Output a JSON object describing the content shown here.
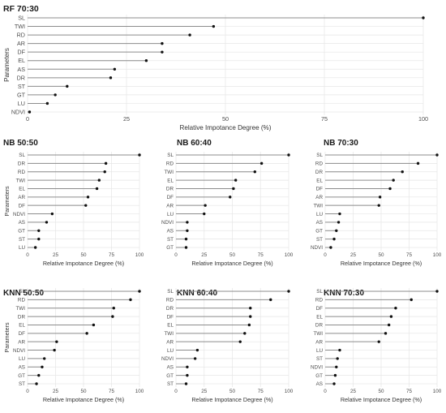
{
  "chart_data": [
    {
      "type": "lollipop",
      "title": "RF 70:30",
      "xlabel": "Relative Impotance Degree (%)",
      "ylabel": "Parameters",
      "xlim": [
        0,
        100
      ],
      "xticks": [
        "0",
        "25",
        "50",
        "75",
        "100"
      ],
      "grid": true,
      "categories": [
        "SL",
        "TWI",
        "RD",
        "AR",
        "DF",
        "EL",
        "AS",
        "DR",
        "ST",
        "GT",
        "LU",
        "NDVI"
      ],
      "values": [
        100,
        47,
        41,
        34,
        34,
        30,
        22,
        21,
        10,
        7,
        5,
        0.5
      ]
    },
    {
      "type": "lollipop",
      "title": "NB 50:50",
      "xlabel": "Relative Impotance Degree (%)",
      "ylabel": "Parameters",
      "xlim": [
        0,
        100
      ],
      "xticks": [
        "0",
        "25",
        "50",
        "75",
        "100"
      ],
      "grid": true,
      "categories": [
        "SL",
        "DR",
        "RD",
        "TWI",
        "EL",
        "AR",
        "DF",
        "NDVI",
        "AS",
        "GT",
        "ST",
        "LU"
      ],
      "values": [
        100,
        70,
        69,
        64,
        62,
        54,
        52,
        22,
        17,
        10,
        10,
        7
      ]
    },
    {
      "type": "lollipop",
      "title": "NB 60:40",
      "xlabel": "Relative Impotance Degree (%)",
      "ylabel": "",
      "xlim": [
        0,
        100
      ],
      "xticks": [
        "0",
        "25",
        "50",
        "75",
        "100"
      ],
      "grid": true,
      "categories": [
        "SL",
        "RD",
        "TWI",
        "EL",
        "DR",
        "DF",
        "AR",
        "LU",
        "NDVI",
        "AS",
        "ST",
        "GT"
      ],
      "values": [
        100,
        76,
        70,
        53,
        51,
        48,
        26,
        25,
        10,
        10,
        9,
        9
      ]
    },
    {
      "type": "lollipop",
      "title": "NB 70:30",
      "xlabel": "Relative Impotance Degree (%)",
      "ylabel": "",
      "xlim": [
        0,
        100
      ],
      "xticks": [
        "0",
        "25",
        "50",
        "75",
        "100"
      ],
      "grid": true,
      "categories": [
        "SL",
        "RD",
        "DR",
        "EL",
        "DF",
        "AR",
        "TWI",
        "LU",
        "AS",
        "GT",
        "ST",
        "NDVI"
      ],
      "values": [
        100,
        83,
        69,
        61,
        58,
        49,
        48,
        13,
        12,
        10,
        8,
        5
      ]
    },
    {
      "type": "lollipop",
      "title": "KNN 50:50",
      "xlabel": "Relative Impotance Degree (%)",
      "ylabel": "Parameters",
      "xlim": [
        0,
        100
      ],
      "xticks": [
        "0",
        "25",
        "50",
        "75",
        "100"
      ],
      "grid": true,
      "categories": [
        "SL",
        "RD",
        "TWI",
        "DR",
        "EL",
        "DF",
        "AR",
        "NDVI",
        "LU",
        "AS",
        "GT",
        "ST"
      ],
      "values": [
        100,
        92,
        77,
        76,
        59,
        53,
        26,
        24,
        15,
        13,
        10,
        8
      ]
    },
    {
      "type": "lollipop",
      "title": "KNN 60:40",
      "xlabel": "Relative Impotance Degree (%)",
      "ylabel": "",
      "xlim": [
        0,
        100
      ],
      "xticks": [
        "0",
        "25",
        "50",
        "75",
        "100"
      ],
      "grid": true,
      "categories": [
        "SL",
        "RD",
        "DR",
        "DF",
        "EL",
        "TWI",
        "AR",
        "LU",
        "NDVI",
        "AS",
        "GT",
        "ST"
      ],
      "values": [
        100,
        84,
        66,
        66,
        65,
        61,
        57,
        19,
        17,
        10,
        10,
        9
      ]
    },
    {
      "type": "lollipop",
      "title": "KNN 70:30",
      "xlabel": "Relative Impotance Degree (%)",
      "ylabel": "",
      "xlim": [
        0,
        100
      ],
      "xticks": [
        "0",
        "25",
        "50",
        "75",
        "100"
      ],
      "grid": true,
      "categories": [
        "SL",
        "RD",
        "DF",
        "EL",
        "DR",
        "TWI",
        "AR",
        "LU",
        "ST",
        "NDVI",
        "GT",
        "AS"
      ],
      "values": [
        100,
        77,
        63,
        59,
        57,
        54,
        48,
        13,
        11,
        10,
        9,
        8
      ]
    }
  ]
}
